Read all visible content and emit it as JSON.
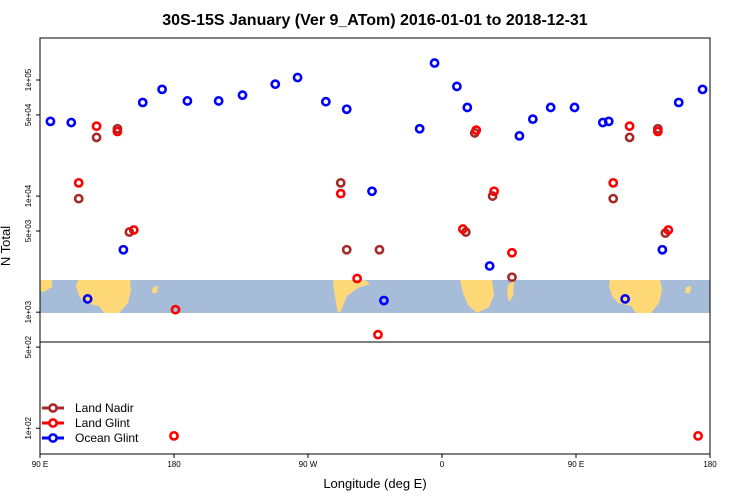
{
  "chart_data": {
    "type": "scatter",
    "title": "30S-15S January (Ver 9_ATom)   2016-01-01 to 2018-12-31",
    "xlabel": "Longitude (deg E)",
    "ylabel": "N Total",
    "y_scale": "log",
    "xlim": [
      90,
      540
    ],
    "ylim": [
      60,
      230000
    ],
    "x_ticks": [
      {
        "value": 90,
        "label": "90 E"
      },
      {
        "value": 180,
        "label": "180"
      },
      {
        "value": 270,
        "label": "90 W"
      },
      {
        "value": 360,
        "label": "0"
      },
      {
        "value": 450,
        "label": "90 E"
      },
      {
        "value": 540,
        "label": "180"
      }
    ],
    "y_ticks": [
      {
        "value": 100,
        "label": "1e+02"
      },
      {
        "value": 500,
        "label": "5e+02"
      },
      {
        "value": 1000,
        "label": "1e+03"
      },
      {
        "value": 5000,
        "label": "5e+03"
      },
      {
        "value": 10000,
        "label": "1e+04"
      },
      {
        "value": 50000,
        "label": "5e+04"
      },
      {
        "value": 100000,
        "label": "1e+05"
      }
    ],
    "inset_map": {
      "lon_range": [
        90,
        540
      ],
      "lat_range": [
        -30,
        -15
      ],
      "ocean_color": "#a7bcd9",
      "land_color": "#ffd878"
    },
    "legend_position": "bottom-left",
    "series": [
      {
        "name": "Land Nadir",
        "color": "#a52a2a",
        "points": [
          {
            "x": 116,
            "y": 9500
          },
          {
            "x": 128,
            "y": 32000
          },
          {
            "x": 142,
            "y": 38000
          },
          {
            "x": 150,
            "y": 4900
          },
          {
            "x": 296,
            "y": 3450
          },
          {
            "x": 292,
            "y": 13000
          },
          {
            "x": 318,
            "y": 3450
          },
          {
            "x": 376,
            "y": 4900
          },
          {
            "x": 382,
            "y": 35000
          },
          {
            "x": 394,
            "y": 10000
          },
          {
            "x": 407,
            "y": 2000
          },
          {
            "x": 475,
            "y": 9500
          },
          {
            "x": 486,
            "y": 32000
          },
          {
            "x": 505,
            "y": 38000
          },
          {
            "x": 510,
            "y": 4800
          }
        ]
      },
      {
        "name": "Land Glint",
        "color": "#ff0000",
        "points": [
          {
            "x": 116,
            "y": 13000
          },
          {
            "x": 128,
            "y": 40000
          },
          {
            "x": 142,
            "y": 36000
          },
          {
            "x": 153,
            "y": 5100
          },
          {
            "x": 181,
            "y": 1050
          },
          {
            "x": 292,
            "y": 10500
          },
          {
            "x": 303,
            "y": 1950
          },
          {
            "x": 317,
            "y": 640
          },
          {
            "x": 374,
            "y": 5200
          },
          {
            "x": 383,
            "y": 37000
          },
          {
            "x": 395,
            "y": 11000
          },
          {
            "x": 407,
            "y": 3250
          },
          {
            "x": 180,
            "y": 86
          },
          {
            "x": 475,
            "y": 13000
          },
          {
            "x": 486,
            "y": 40000
          },
          {
            "x": 505,
            "y": 36000
          },
          {
            "x": 512,
            "y": 5100
          },
          {
            "x": 532,
            "y": 86
          }
        ]
      },
      {
        "name": "Ocean Glint",
        "color": "#0000ff",
        "points": [
          {
            "x": 97,
            "y": 44000
          },
          {
            "x": 111,
            "y": 43000
          },
          {
            "x": 122,
            "y": 1300
          },
          {
            "x": 146,
            "y": 3450
          },
          {
            "x": 159,
            "y": 64000
          },
          {
            "x": 172,
            "y": 83000
          },
          {
            "x": 189,
            "y": 66000
          },
          {
            "x": 210,
            "y": 66000
          },
          {
            "x": 226,
            "y": 74000
          },
          {
            "x": 248,
            "y": 92000
          },
          {
            "x": 263,
            "y": 105000
          },
          {
            "x": 282,
            "y": 65000
          },
          {
            "x": 296,
            "y": 56000
          },
          {
            "x": 313,
            "y": 11000
          },
          {
            "x": 321,
            "y": 1260
          },
          {
            "x": 345,
            "y": 38000
          },
          {
            "x": 355,
            "y": 140000
          },
          {
            "x": 370,
            "y": 88000
          },
          {
            "x": 377,
            "y": 58000
          },
          {
            "x": 392,
            "y": 2500
          },
          {
            "x": 412,
            "y": 33000
          },
          {
            "x": 421,
            "y": 46000
          },
          {
            "x": 433,
            "y": 58000
          },
          {
            "x": 449,
            "y": 58000
          },
          {
            "x": 472,
            "y": 44000
          },
          {
            "x": 468,
            "y": 43000
          },
          {
            "x": 483,
            "y": 1300
          },
          {
            "x": 508,
            "y": 3450
          },
          {
            "x": 519,
            "y": 64000
          },
          {
            "x": 535,
            "y": 83000
          }
        ]
      }
    ]
  }
}
